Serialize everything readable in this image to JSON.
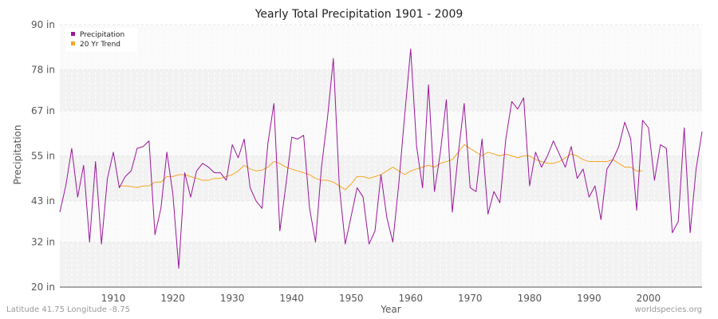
{
  "chart_data": {
    "type": "line",
    "title": "Yearly Total Precipitation 1901 - 2009",
    "xlabel": "Year",
    "ylabel": "Precipitation",
    "xlim": [
      1901,
      2009
    ],
    "ylim": [
      20,
      90
    ],
    "x_ticks": [
      1910,
      1920,
      1930,
      1940,
      1950,
      1960,
      1970,
      1980,
      1990,
      2000
    ],
    "y_ticks": [
      {
        "value": 20,
        "label": "20 in"
      },
      {
        "value": 32,
        "label": "32 in"
      },
      {
        "value": 43,
        "label": "43 in"
      },
      {
        "value": 55,
        "label": "55 in"
      },
      {
        "value": 67,
        "label": "67 in"
      },
      {
        "value": 78,
        "label": "78 in"
      },
      {
        "value": 90,
        "label": "90 in"
      }
    ],
    "legend_position": "top-left",
    "series": [
      {
        "name": "Precipitation",
        "color": "#9b169b",
        "start_year": 1901,
        "values": [
          40,
          47,
          57,
          44,
          52.5,
          32,
          53.5,
          31.5,
          49,
          56,
          46.5,
          49.5,
          51,
          57,
          57.5,
          59,
          34,
          41,
          56,
          45,
          25,
          50.5,
          44,
          51,
          53,
          52,
          50.5,
          50.5,
          48.5,
          58,
          54.5,
          59.5,
          46.5,
          43,
          41,
          58.5,
          69,
          35,
          47,
          60,
          59.5,
          60.5,
          41,
          32,
          52,
          65,
          81,
          47,
          31.5,
          39,
          46.5,
          44,
          31.5,
          35,
          50,
          38.5,
          32,
          47.5,
          66,
          83.5,
          57.5,
          46.5,
          74,
          45.5,
          56,
          70,
          40,
          55.5,
          69,
          46.5,
          45.5,
          59.5,
          39.5,
          45.5,
          42.5,
          59.5,
          69.5,
          67.5,
          70.5,
          47,
          56,
          52,
          55,
          59,
          55.5,
          52,
          57.5,
          49,
          51.5,
          44,
          47,
          38,
          51.5,
          54,
          57.5,
          64,
          59.5,
          40.5,
          64.5,
          62.5,
          48.5,
          58,
          57,
          34.5,
          37.5,
          62.5,
          34.5,
          51.5,
          61.5
        ]
      },
      {
        "name": "20 Yr Trend",
        "color": "#f5a623",
        "start_year": 1911,
        "values": [
          47,
          47,
          46.8,
          46.6,
          47,
          47,
          48,
          48,
          49.5,
          49.5,
          50,
          50,
          49.5,
          49,
          48.5,
          48.5,
          49,
          49,
          49.5,
          50,
          51,
          52.5,
          51.5,
          51,
          51.2,
          52,
          53.5,
          53,
          52,
          51.5,
          51,
          50.5,
          50,
          49,
          48.5,
          48.5,
          48,
          47,
          46,
          47.5,
          49.5,
          49.5,
          49,
          49.5,
          50,
          51,
          52,
          51,
          50,
          51,
          51.5,
          52,
          52.5,
          52,
          53,
          53.5,
          54,
          56,
          58,
          57,
          56,
          55,
          56,
          55.5,
          55,
          55.5,
          55,
          54.5,
          55,
          55,
          54,
          53.5,
          53,
          53,
          53.5,
          54.5,
          55.5,
          55,
          54,
          53.5,
          53.5,
          53.5,
          53.5,
          54,
          53,
          52,
          52,
          51,
          51
        ]
      }
    ]
  },
  "footer": {
    "left": "Latitude 41.75 Longitude -8.75",
    "right": "worldspecies.org"
  }
}
